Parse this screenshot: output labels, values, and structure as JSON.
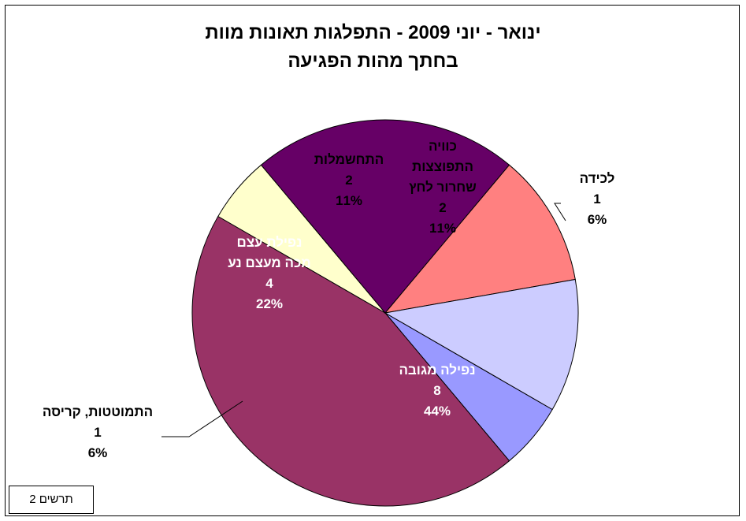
{
  "title_line1": "ינואר - יוני 2009 - התפלגות תאונות מוות",
  "title_line2": "בחתך מהות הפגיעה",
  "figure_label": "תרשים 2",
  "chart_data": {
    "type": "pie",
    "title": "ינואר - יוני 2009 - התפלגות תאונות מוות בחתך מהות הפגיעה",
    "slices": [
      {
        "label": [
          "לכידה"
        ],
        "value": 1,
        "percent": "6%",
        "color": "#9999ff",
        "text_color": "#000000"
      },
      {
        "label": [
          "נפילה מגובה"
        ],
        "value": 8,
        "percent": "44%",
        "color": "#993366",
        "text_color": "#ffffff"
      },
      {
        "label": [
          "התמוטטות, קריסה"
        ],
        "value": 1,
        "percent": "6%",
        "color": "#ffffcc",
        "text_color": "#000000"
      },
      {
        "label": [
          "נפילת עצם",
          "מכה מעצם נע"
        ],
        "value": 4,
        "percent": "22%",
        "color": "#660066",
        "text_color": "#ffffff"
      },
      {
        "label": [
          "התחשמלות"
        ],
        "value": 2,
        "percent": "11%",
        "color": "#ff8080",
        "text_color": "#000000"
      },
      {
        "label": [
          "כוויה",
          "התפוצצות",
          "שחרור לחץ"
        ],
        "value": 2,
        "percent": "11%",
        "color": "#ccccff",
        "text_color": "#000000"
      }
    ]
  }
}
